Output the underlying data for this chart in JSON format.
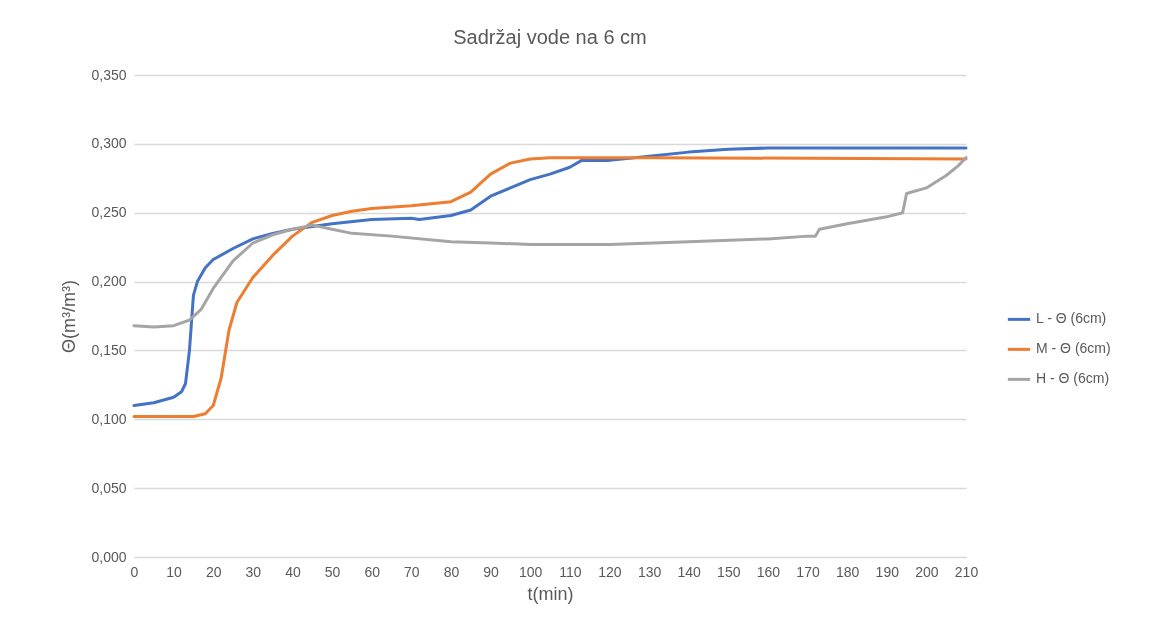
{
  "chart_data": {
    "type": "line",
    "title": "Sadržaj vode na 6 cm",
    "xlabel": "t(min)",
    "ylabel": "Θ(m³/m³)",
    "xlim": [
      0,
      210
    ],
    "xticks": [
      0,
      10,
      20,
      30,
      40,
      50,
      60,
      70,
      80,
      90,
      100,
      110,
      120,
      130,
      140,
      150,
      160,
      170,
      180,
      190,
      200,
      210
    ],
    "ylim": [
      0,
      0.35
    ],
    "yticks": [
      {
        "value": 0,
        "label": "0,000"
      },
      {
        "value": 0.05,
        "label": "0,050"
      },
      {
        "value": 0.1,
        "label": "0,100"
      },
      {
        "value": 0.15,
        "label": "0,150"
      },
      {
        "value": 0.2,
        "label": "0,200"
      },
      {
        "value": 0.25,
        "label": "0,250"
      },
      {
        "value": 0.3,
        "label": "0,300"
      },
      {
        "value": 0.35,
        "label": "0,350"
      }
    ],
    "grid": "y",
    "legend": "right",
    "marker": "none",
    "line_style": "solid",
    "series": [
      {
        "name": "L - Θ (6cm)",
        "color": "#4472c4",
        "x": [
          0,
          5,
          10,
          12,
          13,
          14,
          15,
          16,
          18,
          20,
          25,
          30,
          35,
          40,
          50,
          60,
          70,
          72,
          80,
          85,
          90,
          95,
          100,
          105,
          110,
          113,
          120,
          130,
          140,
          150,
          160,
          180,
          210
        ],
        "values": [
          0.11,
          0.112,
          0.116,
          0.12,
          0.126,
          0.15,
          0.19,
          0.2,
          0.21,
          0.216,
          0.224,
          0.231,
          0.235,
          0.238,
          0.242,
          0.245,
          0.246,
          0.245,
          0.248,
          0.252,
          0.262,
          0.268,
          0.274,
          0.278,
          0.283,
          0.288,
          0.288,
          0.291,
          0.294,
          0.296,
          0.297,
          0.297,
          0.297
        ]
      },
      {
        "name": "M - Θ (6cm)",
        "color": "#ed7d31",
        "x": [
          0,
          15,
          18,
          20,
          22,
          24,
          26,
          30,
          35,
          40,
          45,
          50,
          55,
          60,
          70,
          80,
          85,
          90,
          95,
          100,
          105,
          130,
          210
        ],
        "values": [
          0.102,
          0.102,
          0.104,
          0.11,
          0.13,
          0.165,
          0.185,
          0.203,
          0.219,
          0.233,
          0.243,
          0.248,
          0.251,
          0.253,
          0.255,
          0.258,
          0.265,
          0.278,
          0.286,
          0.289,
          0.29,
          0.29,
          0.289
        ]
      },
      {
        "name": "H - Θ (6cm)",
        "color": "#a5a5a5",
        "x": [
          0,
          5,
          10,
          14,
          17,
          20,
          25,
          30,
          35,
          40,
          45,
          50,
          55,
          65,
          80,
          90,
          100,
          120,
          140,
          160,
          170,
          172,
          173,
          180,
          190,
          194,
          195,
          200,
          205,
          208,
          210
        ],
        "values": [
          0.168,
          0.167,
          0.168,
          0.172,
          0.18,
          0.195,
          0.215,
          0.228,
          0.234,
          0.238,
          0.241,
          0.238,
          0.235,
          0.233,
          0.229,
          0.228,
          0.227,
          0.227,
          0.229,
          0.231,
          0.233,
          0.233,
          0.238,
          0.242,
          0.247,
          0.25,
          0.264,
          0.268,
          0.277,
          0.284,
          0.29
        ]
      }
    ]
  }
}
